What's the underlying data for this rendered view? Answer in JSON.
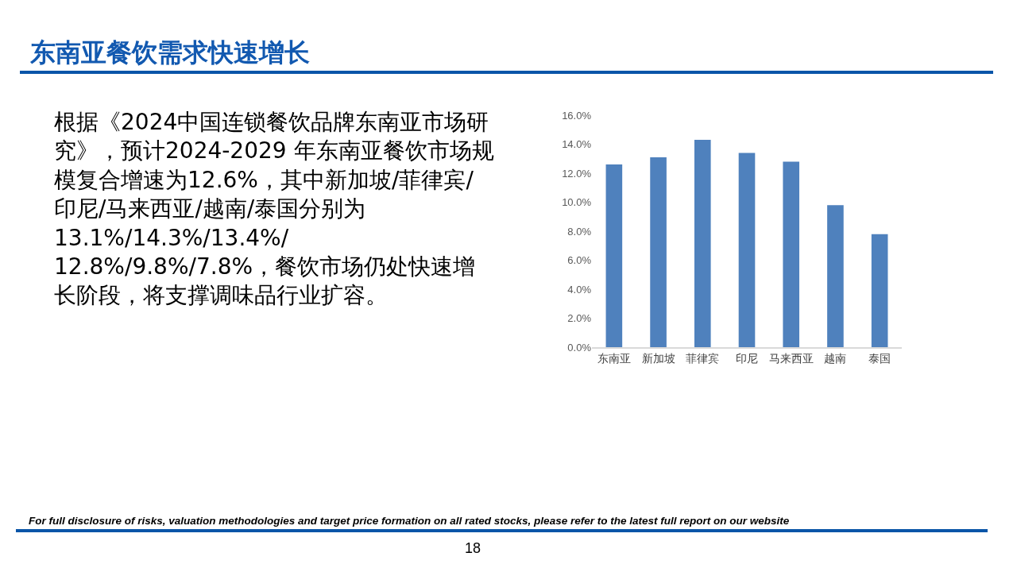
{
  "chart_data": {
    "type": "bar",
    "title": "东南亚餐饮需求快速增长",
    "categories": [
      "东南亚",
      "新加坡",
      "菲律宾",
      "印尼",
      "马来西亚",
      "越南",
      "泰国"
    ],
    "values": [
      12.6,
      13.1,
      14.3,
      13.4,
      12.8,
      9.8,
      7.8
    ],
    "color": "#4f81bd",
    "ylim": [
      0,
      16
    ],
    "yticks": [
      {
        "value": 0,
        "label": "0.0%"
      },
      {
        "value": 2,
        "label": "2.0%"
      },
      {
        "value": 4,
        "label": "4.0%"
      },
      {
        "value": 6,
        "label": "6.0%"
      },
      {
        "value": 8,
        "label": "8.0%"
      },
      {
        "value": 10,
        "label": "10.0%"
      },
      {
        "value": 12,
        "label": "12.0%"
      },
      {
        "value": 14,
        "label": "14.0%"
      },
      {
        "value": 16,
        "label": "16.0%"
      }
    ],
    "grid": false,
    "legend": false,
    "annotations": [
      "根据《2024中国连锁餐饮品牌东南亚市场研究》，预计2024-2029 年东南亚餐饮市场规模复合增速为12.6%，其中新加坡/菲律宾/印尼/马来西亚/越南/泰国分别为13.1%/14.3%/13.4%/ 12.8%/9.8%/7.8%，餐饮市场仍处快速增长阶段，将支撑调味品行业扩容。",
      "For full disclosure of risks, valuation methodologies and target price formation on all rated stocks, please refer to the latest full report on our website",
      "18"
    ]
  }
}
